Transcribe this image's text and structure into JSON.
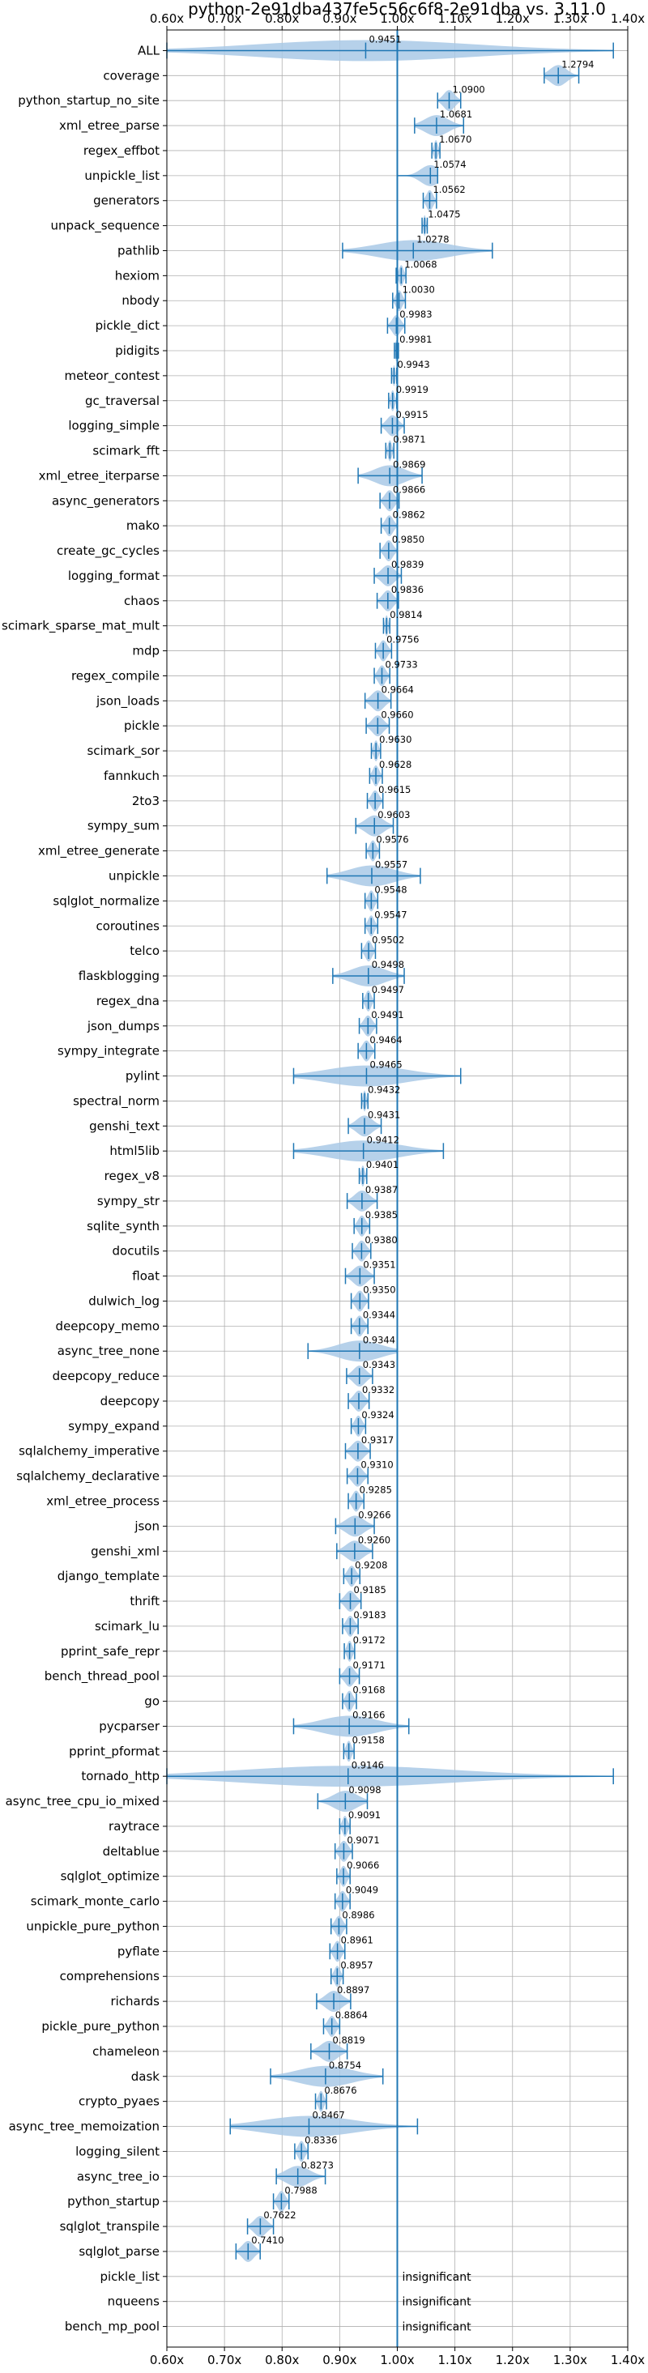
{
  "chart_data": {
    "type": "violin",
    "title": "python-2e91dba437fe5c56c6f8-2e91dba vs. 3.11.0",
    "xlim": [
      0.6,
      1.4
    ],
    "xticks": [
      0.6,
      0.7,
      0.8,
      0.9,
      1.0,
      1.1,
      1.2,
      1.3,
      1.4
    ],
    "xtick_labels": [
      "0.60x",
      "0.70x",
      "0.80x",
      "0.90x",
      "1.00x",
      "1.10x",
      "1.20x",
      "1.30x",
      "1.40x"
    ],
    "reference_line": 1.0,
    "grid": true,
    "color": "#1f77b4",
    "fill_color": "#a9c9e6",
    "insignificant_text": "insignificant",
    "benchmarks": [
      {
        "name": "ALL",
        "value": 0.9451,
        "label": "0.9451",
        "min": 0.6,
        "max": 1.375
      },
      {
        "name": "coverage",
        "value": 1.2794,
        "label": "1.2794",
        "min": 1.255,
        "max": 1.315
      },
      {
        "name": "python_startup_no_site",
        "value": 1.09,
        "label": "1.0900",
        "min": 1.07,
        "max": 1.11
      },
      {
        "name": "xml_etree_parse",
        "value": 1.0681,
        "label": "1.0681",
        "min": 1.03,
        "max": 1.115
      },
      {
        "name": "regex_effbot",
        "value": 1.067,
        "label": "1.0670",
        "min": 1.06,
        "max": 1.074
      },
      {
        "name": "unpickle_list",
        "value": 1.0574,
        "label": "1.0574",
        "min": 1.0,
        "max": 1.07
      },
      {
        "name": "generators",
        "value": 1.0562,
        "label": "1.0562",
        "min": 1.045,
        "max": 1.068
      },
      {
        "name": "unpack_sequence",
        "value": 1.0475,
        "label": "1.0475",
        "min": 1.043,
        "max": 1.052
      },
      {
        "name": "pathlib",
        "value": 1.0278,
        "label": "1.0278",
        "min": 0.905,
        "max": 1.165
      },
      {
        "name": "hexiom",
        "value": 1.0068,
        "label": "1.0068",
        "min": 0.998,
        "max": 1.015
      },
      {
        "name": "nbody",
        "value": 1.003,
        "label": "1.0030",
        "min": 0.992,
        "max": 1.014
      },
      {
        "name": "pickle_dict",
        "value": 0.9983,
        "label": "0.9983",
        "min": 0.983,
        "max": 1.013
      },
      {
        "name": "pidigits",
        "value": 0.9981,
        "label": "0.9981",
        "min": 0.995,
        "max": 1.002
      },
      {
        "name": "meteor_contest",
        "value": 0.9943,
        "label": "0.9943",
        "min": 0.99,
        "max": 0.999
      },
      {
        "name": "gc_traversal",
        "value": 0.9919,
        "label": "0.9919",
        "min": 0.985,
        "max": 0.999
      },
      {
        "name": "logging_simple",
        "value": 0.9915,
        "label": "0.9915",
        "min": 0.972,
        "max": 1.012
      },
      {
        "name": "scimark_fft",
        "value": 0.9871,
        "label": "0.9871",
        "min": 0.98,
        "max": 0.994
      },
      {
        "name": "xml_etree_iterparse",
        "value": 0.9869,
        "label": "0.9869",
        "min": 0.932,
        "max": 1.043
      },
      {
        "name": "async_generators",
        "value": 0.9866,
        "label": "0.9866",
        "min": 0.97,
        "max": 1.003
      },
      {
        "name": "mako",
        "value": 0.9862,
        "label": "0.9862",
        "min": 0.972,
        "max": 1.0
      },
      {
        "name": "create_gc_cycles",
        "value": 0.985,
        "label": "0.9850",
        "min": 0.97,
        "max": 1.0
      },
      {
        "name": "logging_format",
        "value": 0.9839,
        "label": "0.9839",
        "min": 0.96,
        "max": 1.007
      },
      {
        "name": "chaos",
        "value": 0.9836,
        "label": "0.9836",
        "min": 0.965,
        "max": 1.002
      },
      {
        "name": "scimark_sparse_mat_mult",
        "value": 0.9814,
        "label": "0.9814",
        "min": 0.976,
        "max": 0.987
      },
      {
        "name": "mdp",
        "value": 0.9756,
        "label": "0.9756",
        "min": 0.962,
        "max": 0.99
      },
      {
        "name": "regex_compile",
        "value": 0.9733,
        "label": "0.9733",
        "min": 0.96,
        "max": 0.987
      },
      {
        "name": "json_loads",
        "value": 0.9664,
        "label": "0.9664",
        "min": 0.944,
        "max": 0.989
      },
      {
        "name": "pickle",
        "value": 0.966,
        "label": "0.9660",
        "min": 0.946,
        "max": 0.986
      },
      {
        "name": "scimark_sor",
        "value": 0.963,
        "label": "0.9630",
        "min": 0.955,
        "max": 0.971
      },
      {
        "name": "fannkuch",
        "value": 0.9628,
        "label": "0.9628",
        "min": 0.952,
        "max": 0.974
      },
      {
        "name": "2to3",
        "value": 0.9615,
        "label": "0.9615",
        "min": 0.948,
        "max": 0.975
      },
      {
        "name": "sympy_sum",
        "value": 0.9603,
        "label": "0.9603",
        "min": 0.928,
        "max": 0.993
      },
      {
        "name": "xml_etree_generate",
        "value": 0.9576,
        "label": "0.9576",
        "min": 0.946,
        "max": 0.969
      },
      {
        "name": "unpickle",
        "value": 0.9557,
        "label": "0.9557",
        "min": 0.878,
        "max": 1.04
      },
      {
        "name": "sqlglot_normalize",
        "value": 0.9548,
        "label": "0.9548",
        "min": 0.944,
        "max": 0.966
      },
      {
        "name": "coroutines",
        "value": 0.9547,
        "label": "0.9547",
        "min": 0.944,
        "max": 0.966
      },
      {
        "name": "telco",
        "value": 0.9502,
        "label": "0.9502",
        "min": 0.938,
        "max": 0.962
      },
      {
        "name": "flaskblogging",
        "value": 0.9498,
        "label": "0.9498",
        "min": 0.888,
        "max": 1.012
      },
      {
        "name": "regex_dna",
        "value": 0.9497,
        "label": "0.9497",
        "min": 0.94,
        "max": 0.96
      },
      {
        "name": "json_dumps",
        "value": 0.9491,
        "label": "0.9491",
        "min": 0.934,
        "max": 0.964
      },
      {
        "name": "sympy_integrate",
        "value": 0.9464,
        "label": "0.9464",
        "min": 0.932,
        "max": 0.961
      },
      {
        "name": "pylint",
        "value": 0.9465,
        "label": "0.9465",
        "min": 0.82,
        "max": 1.11
      },
      {
        "name": "spectral_norm",
        "value": 0.9432,
        "label": "0.9432",
        "min": 0.938,
        "max": 0.949
      },
      {
        "name": "genshi_text",
        "value": 0.9431,
        "label": "0.9431",
        "min": 0.915,
        "max": 0.972
      },
      {
        "name": "html5lib",
        "value": 0.9412,
        "label": "0.9412",
        "min": 0.82,
        "max": 1.08
      },
      {
        "name": "regex_v8",
        "value": 0.9401,
        "label": "0.9401",
        "min": 0.934,
        "max": 0.947
      },
      {
        "name": "sympy_str",
        "value": 0.9387,
        "label": "0.9387",
        "min": 0.913,
        "max": 0.965
      },
      {
        "name": "sqlite_synth",
        "value": 0.9385,
        "label": "0.9385",
        "min": 0.925,
        "max": 0.952
      },
      {
        "name": "docutils",
        "value": 0.938,
        "label": "0.9380",
        "min": 0.922,
        "max": 0.954
      },
      {
        "name": "float",
        "value": 0.9351,
        "label": "0.9351",
        "min": 0.91,
        "max": 0.96
      },
      {
        "name": "dulwich_log",
        "value": 0.935,
        "label": "0.9350",
        "min": 0.92,
        "max": 0.95
      },
      {
        "name": "deepcopy_memo",
        "value": 0.9344,
        "label": "0.9344",
        "min": 0.92,
        "max": 0.949
      },
      {
        "name": "async_tree_none",
        "value": 0.9344,
        "label": "0.9344",
        "min": 0.845,
        "max": 1.0
      },
      {
        "name": "deepcopy_reduce",
        "value": 0.9343,
        "label": "0.9343",
        "min": 0.912,
        "max": 0.957
      },
      {
        "name": "deepcopy",
        "value": 0.9332,
        "label": "0.9332",
        "min": 0.915,
        "max": 0.951
      },
      {
        "name": "sympy_expand",
        "value": 0.9324,
        "label": "0.9324",
        "min": 0.92,
        "max": 0.945
      },
      {
        "name": "sqlalchemy_imperative",
        "value": 0.9317,
        "label": "0.9317",
        "min": 0.91,
        "max": 0.953
      },
      {
        "name": "sqlalchemy_declarative",
        "value": 0.931,
        "label": "0.9310",
        "min": 0.913,
        "max": 0.949
      },
      {
        "name": "xml_etree_process",
        "value": 0.9285,
        "label": "0.9285",
        "min": 0.915,
        "max": 0.942
      },
      {
        "name": "json",
        "value": 0.9266,
        "label": "0.9266",
        "min": 0.893,
        "max": 0.96
      },
      {
        "name": "genshi_xml",
        "value": 0.926,
        "label": "0.9260",
        "min": 0.895,
        "max": 0.957
      },
      {
        "name": "django_template",
        "value": 0.9208,
        "label": "0.9208",
        "min": 0.907,
        "max": 0.935
      },
      {
        "name": "thrift",
        "value": 0.9185,
        "label": "0.9185",
        "min": 0.9,
        "max": 0.937
      },
      {
        "name": "scimark_lu",
        "value": 0.9183,
        "label": "0.9183",
        "min": 0.905,
        "max": 0.932
      },
      {
        "name": "pprint_safe_repr",
        "value": 0.9172,
        "label": "0.9172",
        "min": 0.908,
        "max": 0.926
      },
      {
        "name": "bench_thread_pool",
        "value": 0.9171,
        "label": "0.9171",
        "min": 0.9,
        "max": 0.934
      },
      {
        "name": "go",
        "value": 0.9168,
        "label": "0.9168",
        "min": 0.905,
        "max": 0.929
      },
      {
        "name": "pycparser",
        "value": 0.9166,
        "label": "0.9166",
        "min": 0.82,
        "max": 1.02
      },
      {
        "name": "pprint_pformat",
        "value": 0.9158,
        "label": "0.9158",
        "min": 0.907,
        "max": 0.925
      },
      {
        "name": "tornado_http",
        "value": 0.9146,
        "label": "0.9146",
        "min": 0.6,
        "max": 1.375
      },
      {
        "name": "async_tree_cpu_io_mixed",
        "value": 0.9098,
        "label": "0.9098",
        "min": 0.862,
        "max": 0.948
      },
      {
        "name": "raytrace",
        "value": 0.9091,
        "label": "0.9091",
        "min": 0.9,
        "max": 0.918
      },
      {
        "name": "deltablue",
        "value": 0.9071,
        "label": "0.9071",
        "min": 0.892,
        "max": 0.922
      },
      {
        "name": "sqlglot_optimize",
        "value": 0.9066,
        "label": "0.9066",
        "min": 0.895,
        "max": 0.918
      },
      {
        "name": "scimark_monte_carlo",
        "value": 0.9049,
        "label": "0.9049",
        "min": 0.892,
        "max": 0.918
      },
      {
        "name": "unpickle_pure_python",
        "value": 0.8986,
        "label": "0.8986",
        "min": 0.885,
        "max": 0.912
      },
      {
        "name": "pyflate",
        "value": 0.8961,
        "label": "0.8961",
        "min": 0.883,
        "max": 0.909
      },
      {
        "name": "comprehensions",
        "value": 0.8957,
        "label": "0.8957",
        "min": 0.885,
        "max": 0.906
      },
      {
        "name": "richards",
        "value": 0.8897,
        "label": "0.8897",
        "min": 0.86,
        "max": 0.919
      },
      {
        "name": "pickle_pure_python",
        "value": 0.8864,
        "label": "0.8864",
        "min": 0.872,
        "max": 0.9
      },
      {
        "name": "chameleon",
        "value": 0.8819,
        "label": "0.8819",
        "min": 0.85,
        "max": 0.913
      },
      {
        "name": "dask",
        "value": 0.8754,
        "label": "0.8754",
        "min": 0.78,
        "max": 0.975
      },
      {
        "name": "crypto_pyaes",
        "value": 0.8676,
        "label": "0.8676",
        "min": 0.858,
        "max": 0.877
      },
      {
        "name": "async_tree_memoization",
        "value": 0.8467,
        "label": "0.8467",
        "min": 0.71,
        "max": 1.035
      },
      {
        "name": "logging_silent",
        "value": 0.8336,
        "label": "0.8336",
        "min": 0.822,
        "max": 0.845
      },
      {
        "name": "async_tree_io",
        "value": 0.8273,
        "label": "0.8273",
        "min": 0.79,
        "max": 0.875
      },
      {
        "name": "python_startup",
        "value": 0.7988,
        "label": "0.7988",
        "min": 0.785,
        "max": 0.812
      },
      {
        "name": "sqlglot_transpile",
        "value": 0.7622,
        "label": "0.7622",
        "min": 0.74,
        "max": 0.785
      },
      {
        "name": "sqlglot_parse",
        "value": 0.741,
        "label": "0.7410",
        "min": 0.72,
        "max": 0.762
      },
      {
        "name": "pickle_list",
        "value": null,
        "label": "insignificant",
        "min": null,
        "max": null
      },
      {
        "name": "nqueens",
        "value": null,
        "label": "insignificant",
        "min": null,
        "max": null
      },
      {
        "name": "bench_mp_pool",
        "value": null,
        "label": "insignificant",
        "min": null,
        "max": null
      }
    ]
  }
}
